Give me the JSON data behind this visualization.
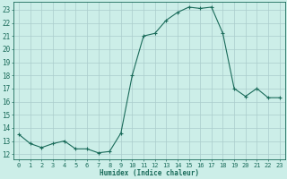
{
  "x": [
    0,
    1,
    2,
    3,
    4,
    5,
    6,
    7,
    8,
    9,
    10,
    11,
    12,
    13,
    14,
    15,
    16,
    17,
    18,
    19,
    20,
    21,
    22,
    23
  ],
  "y": [
    13.5,
    12.8,
    12.5,
    12.8,
    13.0,
    12.4,
    12.4,
    12.1,
    12.2,
    13.6,
    18.0,
    21.0,
    21.2,
    22.2,
    22.8,
    23.2,
    23.1,
    23.2,
    21.2,
    17.0,
    16.4,
    17.0,
    16.3,
    16.3
  ],
  "line_color": "#1a6b5a",
  "marker": "+",
  "marker_size": 3,
  "marker_lw": 0.8,
  "bg_color": "#cceee8",
  "grid_color": "#aacccc",
  "xlabel": "Humidex (Indice chaleur)",
  "ylabel_ticks": [
    12,
    13,
    14,
    15,
    16,
    17,
    18,
    19,
    20,
    21,
    22,
    23
  ],
  "xlim": [
    -0.5,
    23.5
  ],
  "ylim": [
    11.6,
    23.6
  ],
  "tick_color": "#1a6b5a",
  "label_color": "#1a6b5a",
  "tick_fontsize": 5.0,
  "xlabel_fontsize": 5.5,
  "linewidth": 0.8
}
